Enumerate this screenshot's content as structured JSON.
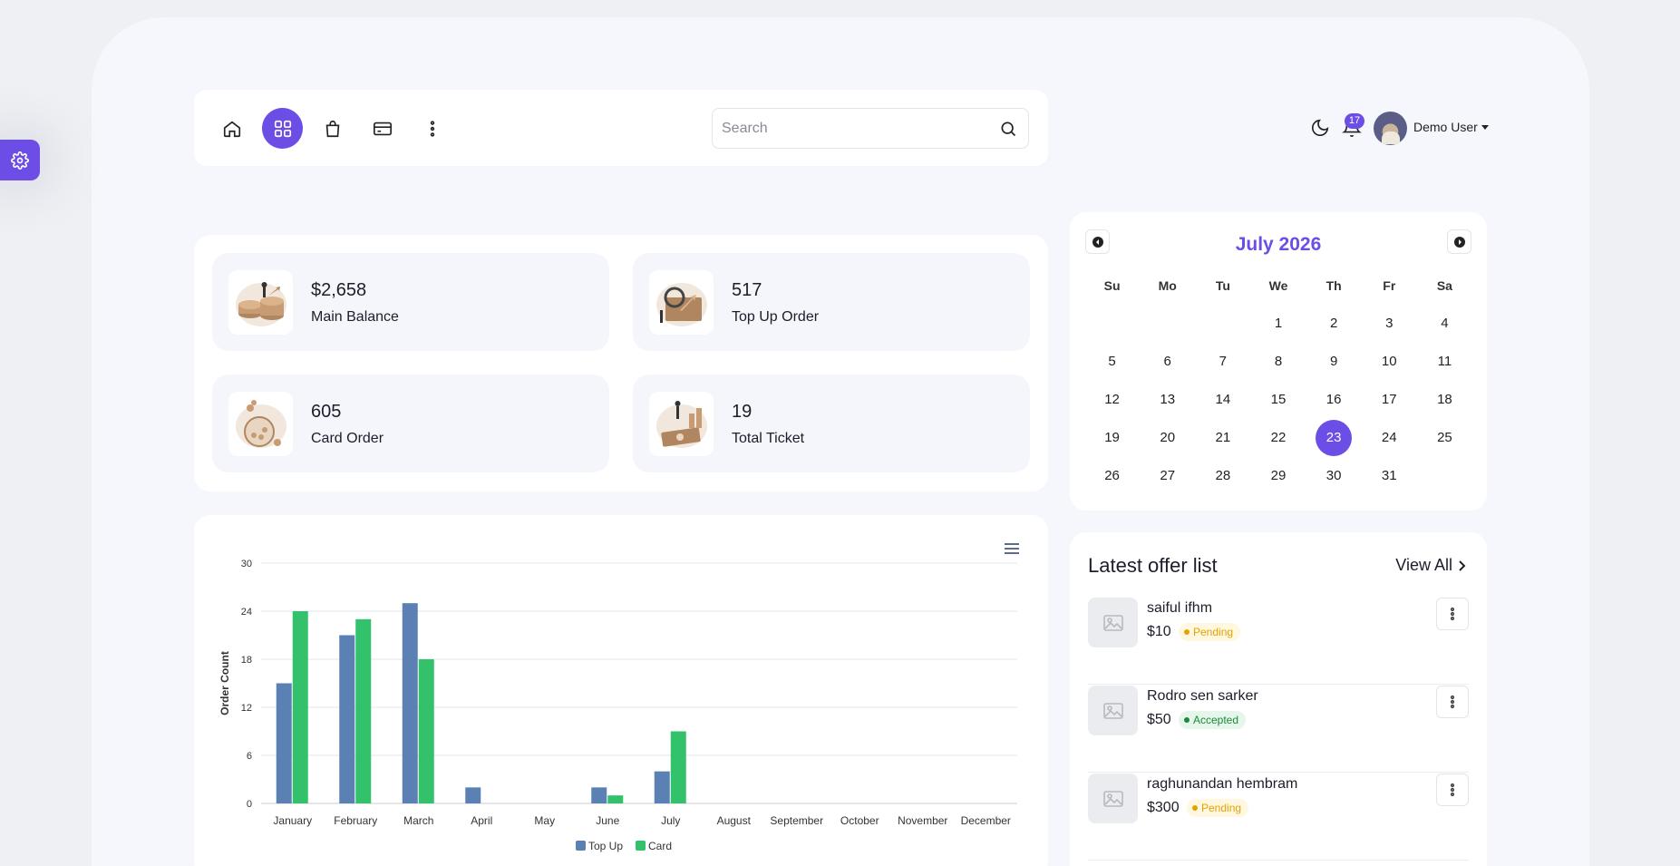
{
  "colors": {
    "accent": "#6c4de6",
    "series_top_up": "#5a80b4",
    "series_card": "#33c16c"
  },
  "sidebar": {
    "settings_icon": "gear-icon"
  },
  "nav": {
    "icons": [
      "home-icon",
      "grid-icon",
      "shopping-bag-icon",
      "credit-card-icon",
      "more-vertical-icon"
    ],
    "active_index": 1
  },
  "search": {
    "placeholder": "Search",
    "value": ""
  },
  "header": {
    "notification_count": "17",
    "user_name": "Demo User"
  },
  "stats": [
    {
      "value": "$2,658",
      "label": "Main Balance"
    },
    {
      "value": "517",
      "label": "Top Up Order"
    },
    {
      "value": "605",
      "label": "Card Order"
    },
    {
      "value": "19",
      "label": "Total Ticket"
    }
  ],
  "calendar": {
    "title": "July 2026",
    "weekdays": [
      "Su",
      "Mo",
      "Tu",
      "We",
      "Th",
      "Fr",
      "Sa"
    ],
    "first_weekday_index": 3,
    "days_in_month": 31,
    "today": 23
  },
  "offers": {
    "title": "Latest offer list",
    "view_all": "View All",
    "items": [
      {
        "name": "saiful ifhm",
        "price": "$10",
        "status": "Pending",
        "status_type": "pending"
      },
      {
        "name": "Rodro sen sarker",
        "price": "$50",
        "status": "Accepted",
        "status_type": "accepted"
      },
      {
        "name": "raghunandan hembram",
        "price": "$300",
        "status": "Pending",
        "status_type": "pending"
      }
    ]
  },
  "chart_data": {
    "type": "bar",
    "categories": [
      "January",
      "February",
      "March",
      "April",
      "May",
      "June",
      "July",
      "August",
      "September",
      "October",
      "November",
      "December"
    ],
    "series": [
      {
        "name": "Top Up",
        "values": [
          15,
          21,
          25,
          2,
          0,
          2,
          4,
          0,
          0,
          0,
          0,
          0
        ]
      },
      {
        "name": "Card",
        "values": [
          24,
          23,
          18,
          0,
          0,
          1,
          9,
          0,
          0,
          0,
          0,
          0
        ]
      }
    ],
    "title": "",
    "xlabel": "",
    "ylabel": "Order Count",
    "ylim": [
      0,
      30
    ],
    "yticks": [
      0,
      6,
      12,
      18,
      24,
      30
    ],
    "grid": true,
    "legend_position": "bottom-center"
  }
}
